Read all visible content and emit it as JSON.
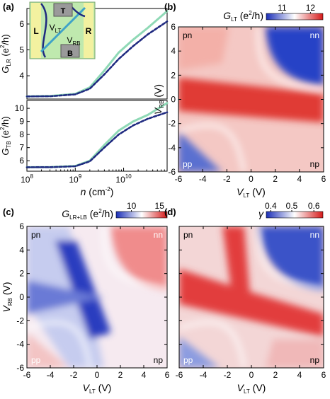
{
  "chart_data": [
    {
      "panel": "(a)",
      "type": "line",
      "x_scale": "log",
      "xlim_exponent": [
        8,
        10.9
      ],
      "xlabel_main": "n",
      "xlabel_unit": " (cm",
      "xlabel_exp": "-2",
      "xlabel_close": ")",
      "xticks": [
        "10",
        "10",
        "10"
      ],
      "xticks_exp": [
        "8",
        "9",
        "10"
      ],
      "top": {
        "ylabel_main": "G",
        "ylabel_sub": "LR",
        "ylabel_unit": " (e",
        "ylabel_exp": "2",
        "ylabel_tail": "/h)",
        "yticks": [
          "4",
          "5",
          "6"
        ],
        "ylim": [
          3.1,
          6.6
        ],
        "series": [
          {
            "style": "solid",
            "color": "#8fd9b6",
            "x": [
              8.0,
              8.5,
              9.0,
              9.3,
              9.6,
              9.9,
              10.2,
              10.5,
              10.9
            ],
            "y": [
              3.2,
              3.22,
              3.3,
              3.55,
              4.2,
              4.9,
              5.4,
              5.85,
              6.5
            ]
          },
          {
            "style": "dashed",
            "color": "#1f2a80",
            "x": [
              8.0,
              8.5,
              9.0,
              9.3,
              9.6,
              9.9,
              10.2,
              10.5,
              10.9
            ],
            "y": [
              3.2,
              3.21,
              3.28,
              3.5,
              4.05,
              4.65,
              5.15,
              5.6,
              6.1
            ]
          }
        ]
      },
      "bottom": {
        "ylabel_main": "G",
        "ylabel_sub": "TB",
        "ylabel_unit": " (e",
        "ylabel_exp": "2",
        "ylabel_tail": "/h)",
        "yticks": [
          "6",
          "7",
          "8",
          "9",
          "10"
        ],
        "ylim": [
          5.2,
          10.6
        ],
        "series": [
          {
            "style": "solid",
            "color": "#8fd9b6",
            "x": [
              8.0,
              8.5,
              9.0,
              9.3,
              9.6,
              9.9,
              10.2,
              10.5,
              10.9
            ],
            "y": [
              5.5,
              5.52,
              5.6,
              6.0,
              7.2,
              8.3,
              9.0,
              9.5,
              10.4
            ]
          },
          {
            "style": "dashed",
            "color": "#1f2a80",
            "x": [
              8.0,
              8.5,
              9.0,
              9.3,
              9.6,
              9.9,
              10.2,
              10.5,
              10.9
            ],
            "y": [
              5.5,
              5.51,
              5.58,
              5.95,
              7.0,
              8.0,
              8.7,
              9.2,
              9.7
            ]
          }
        ]
      },
      "inset": {
        "labels": [
          "T",
          "L",
          "R",
          "V",
          "V",
          "B"
        ],
        "subs": [
          "",
          "",
          "",
          "LT",
          "RB",
          ""
        ],
        "colors": {
          "device": "#c8f0b4",
          "gate": "#9a9a9a",
          "contact": "#f3f1a0",
          "line_blue": "#1f2a80",
          "line_cyan": "#3fa3c8"
        }
      }
    },
    {
      "panel": "(b)",
      "type": "heatmap",
      "title_main": "G",
      "title_sub": "LT",
      "title_unit": " (e",
      "title_exp": "2",
      "title_tail": "/h)",
      "colorbar_ticks": [
        "11",
        "12"
      ],
      "xlabel_main": "V",
      "xlabel_sub": "LT",
      "xlabel_unit": " (V)",
      "ylabel_main": "V",
      "ylabel_sub": "RB",
      "ylabel_unit": " (V)",
      "xticks": [
        "-6",
        "-4",
        "-2",
        "0",
        "2",
        "4",
        "6"
      ],
      "yticks": [
        "6",
        "4",
        "2",
        "0",
        "-2",
        "-4",
        "-6"
      ],
      "xlim": [
        -6,
        6
      ],
      "ylim": [
        -6,
        6
      ],
      "regions": {
        "top_left": "pn",
        "top_right": "nn",
        "bottom_left": "pp",
        "bottom_right": "np"
      }
    },
    {
      "panel": "(c)",
      "type": "heatmap",
      "title_main": "G",
      "title_sub": "LR+LB",
      "title_unit": " (e",
      "title_exp": "2",
      "title_tail": "/h)",
      "colorbar_ticks": [
        "10",
        "15"
      ],
      "xlabel_main": "V",
      "xlabel_sub": "LT",
      "xlabel_unit": " (V)",
      "ylabel_main": "V",
      "ylabel_sub": "RB",
      "ylabel_unit": " (V)",
      "xticks": [
        "-6",
        "-4",
        "-2",
        "0",
        "2",
        "4",
        "6"
      ],
      "yticks": [
        "6",
        "4",
        "2",
        "0",
        "-2",
        "-4",
        "-6"
      ],
      "xlim": [
        -6,
        6
      ],
      "ylim": [
        -6,
        6
      ],
      "regions": {
        "top_left": "pn",
        "top_right": "nn",
        "bottom_left": "pp",
        "bottom_right": "np"
      }
    },
    {
      "panel": "(d)",
      "type": "heatmap",
      "title_main": "γ",
      "colorbar_ticks": [
        "0.4",
        "0.5",
        "0.6"
      ],
      "xlabel_main": "V",
      "xlabel_sub": "LT",
      "xlabel_unit": " (V)",
      "xticks": [
        "-6",
        "-4",
        "-2",
        "0",
        "2",
        "4",
        "6"
      ],
      "xlim": [
        -6,
        6
      ],
      "ylim": [
        -6,
        6
      ],
      "regions": {
        "top_left": "pn",
        "top_right": "nn",
        "bottom_left": "pp",
        "bottom_right": "np"
      }
    }
  ]
}
